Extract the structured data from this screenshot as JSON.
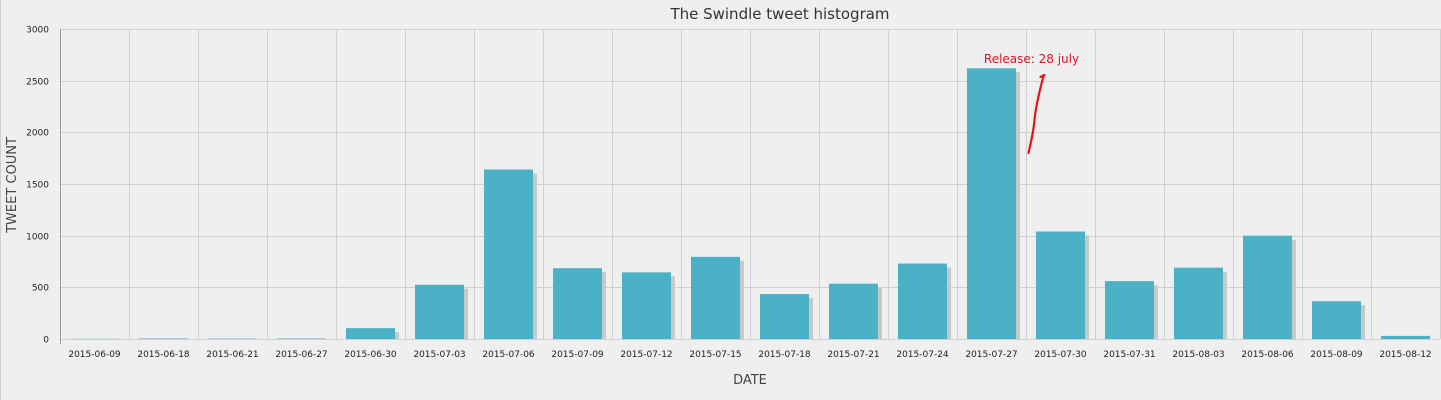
{
  "chart_data": {
    "type": "bar",
    "title": "The Swindle tweet histogram",
    "xlabel": "DATE",
    "ylabel": "TWEET COUNT",
    "ylim": [
      0,
      3000
    ],
    "yticks": [
      0,
      500,
      1000,
      1500,
      2000,
      2500,
      3000
    ],
    "grid": true,
    "legend": "none",
    "categories": [
      "2015-06-09",
      "2015-06-18",
      "2015-06-21",
      "2015-06-27",
      "2015-06-30",
      "2015-07-03",
      "2015-07-06",
      "2015-07-09",
      "2015-07-12",
      "2015-07-15",
      "2015-07-18",
      "2015-07-21",
      "2015-07-24",
      "2015-07-27",
      "2015-07-30",
      "2015-07-31",
      "2015-08-03",
      "2015-08-06",
      "2015-08-09",
      "2015-08-12"
    ],
    "values": [
      2,
      5,
      4,
      5,
      105,
      525,
      1640,
      685,
      645,
      795,
      435,
      535,
      730,
      2620,
      1040,
      560,
      690,
      1000,
      365,
      30
    ],
    "colors": {
      "bar": "#4ab1c6",
      "shadow": "#c8c8c8",
      "annotation": "#e3141f"
    },
    "annotations": [
      {
        "text": "Release: 28 july",
        "category": "2015-07-27"
      }
    ]
  }
}
